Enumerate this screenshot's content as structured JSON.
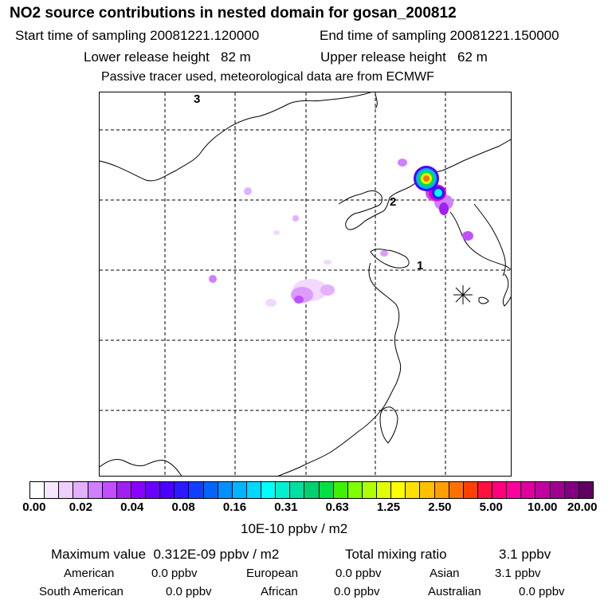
{
  "header": {
    "title": "NO2 source contributions in nested domain for gosan_200812",
    "start_time": "Start time of sampling 20081221.120000",
    "end_time": "End time of sampling 20081221.150000",
    "lower_height": "Lower release height   82 m",
    "upper_height": "Upper release height   62 m",
    "tracer_note": "Passive tracer used, meteorological data are from ECMWF"
  },
  "map": {
    "point_labels": [
      "3",
      "2",
      "1"
    ],
    "receptor_icon": "asterisk-star-icon"
  },
  "colorbar": {
    "labels": [
      "0.00",
      "0.02",
      "0.04",
      "0.08",
      "0.16",
      "0.31",
      "0.63",
      "1.25",
      "2.50",
      "5.00",
      "10.00",
      "20.00"
    ],
    "colors": [
      "#ffffff",
      "#f6e6ff",
      "#eed0ff",
      "#e4b0ff",
      "#d080ff",
      "#c050ff",
      "#a020f0",
      "#8800ff",
      "#6a00ff",
      "#4b00ff",
      "#2a1aff",
      "#1040ff",
      "#0066ff",
      "#0090ff",
      "#00b4ff",
      "#00d8ff",
      "#00ffff",
      "#00f0d0",
      "#00e0a0",
      "#00d070",
      "#00e040",
      "#40f000",
      "#80ff00",
      "#b0ff00",
      "#e0ff00",
      "#ffff00",
      "#ffe000",
      "#ffc000",
      "#ffa000",
      "#ff7000",
      "#ff4000",
      "#ff1040",
      "#ff0080",
      "#ff00a0",
      "#e000a0",
      "#c000a0",
      "#a00090",
      "#800080",
      "#600060"
    ],
    "units": "10E-10 ppbv / m2"
  },
  "stats": {
    "max_value": "Maximum value  0.312E-09 ppbv / m2",
    "total_mixing": "Total mixing ratio",
    "total_mixing_value": "3.1 ppbv"
  },
  "regions": [
    {
      "name": "American",
      "value": "0.0 ppbv"
    },
    {
      "name": "European",
      "value": "0.0 ppbv"
    },
    {
      "name": "Asian",
      "value": "3.1 ppbv"
    },
    {
      "name": "South American",
      "value": "0.0 ppbv"
    },
    {
      "name": "African",
      "value": "0.0 ppbv"
    },
    {
      "name": "Australian",
      "value": "0.0 ppbv"
    }
  ]
}
